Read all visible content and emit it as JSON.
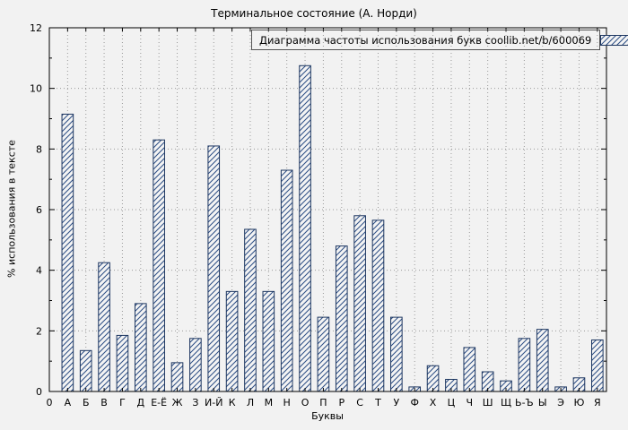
{
  "title": "Терминальное состояние (А. Норди)",
  "legend": {
    "label": "Диаграмма частоты использования букв coollib.net/b/600069"
  },
  "axes": {
    "x_label": "Буквы",
    "y_label": "% использования в тексте",
    "origin_label": "0",
    "y_ticks": [
      0,
      2,
      4,
      6,
      8,
      10,
      12
    ]
  },
  "colors": {
    "bar_hatch": "#2b4d84",
    "bar_border": "#1d3660",
    "grid": "#9a9a9a",
    "axis": "#000000",
    "background": "#f2f2f2"
  },
  "chart_data": {
    "type": "bar",
    "title": "Терминальное состояние (А. Норди)",
    "xlabel": "Буквы",
    "ylabel": "% использования в тексте",
    "ylim": [
      0,
      12
    ],
    "grid": true,
    "legend": "Диаграмма частоты использования букв coollib.net/b/600069",
    "legend_position": "top-right-inside",
    "categories": [
      "А",
      "Б",
      "В",
      "Г",
      "Д",
      "Е-Ё",
      "Ж",
      "З",
      "И-Й",
      "К",
      "Л",
      "М",
      "Н",
      "О",
      "П",
      "Р",
      "С",
      "Т",
      "У",
      "Ф",
      "Х",
      "Ц",
      "Ч",
      "Ш",
      "Щ",
      "Ь-Ъ",
      "Ы",
      "Э",
      "Ю",
      "Я"
    ],
    "values": [
      9.15,
      1.35,
      4.25,
      1.85,
      2.9,
      8.3,
      0.95,
      1.75,
      8.1,
      3.3,
      5.35,
      3.3,
      7.3,
      10.75,
      2.45,
      4.8,
      5.8,
      5.65,
      2.45,
      0.15,
      0.85,
      0.4,
      1.45,
      0.65,
      0.35,
      1.75,
      2.05,
      0.15,
      0.45,
      1.7
    ]
  }
}
